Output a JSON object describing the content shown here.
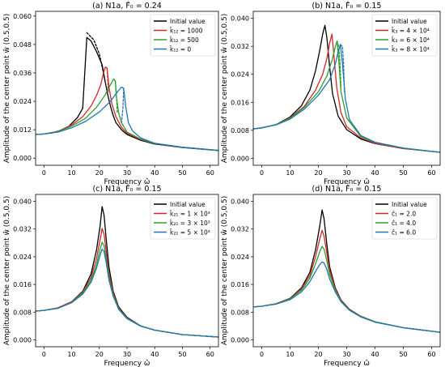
{
  "chart_data": [
    {
      "type": "line",
      "title": "(a) N1a, F̂₀ = 0.24",
      "xlabel": "Frequency ω̂",
      "ylabel": "Amplitude of the center point ŵ (0.5,0.5)",
      "xlim": [
        -3,
        63
      ],
      "ylim": [
        -0.003,
        0.062
      ],
      "xticks": [
        0,
        10,
        20,
        30,
        40,
        50,
        60
      ],
      "yticks": [
        0.0,
        0.012,
        0.024,
        0.036,
        0.048,
        0.06
      ],
      "ytick_labels": [
        "0.000",
        "0.012",
        "0.024",
        "0.036",
        "0.048",
        "0.060"
      ],
      "grid": false,
      "legend": "upper right",
      "series": [
        {
          "name": "Initial value",
          "color": "#000000",
          "x": [
            -3,
            0,
            3,
            6,
            9,
            12,
            14,
            15.5,
            17,
            19,
            21,
            22,
            23,
            24,
            25,
            26,
            28,
            30,
            35,
            40,
            50,
            63
          ],
          "y": [
            0.01,
            0.0102,
            0.0107,
            0.0117,
            0.0135,
            0.017,
            0.021,
            0.051,
            0.0495,
            0.045,
            0.0395,
            0.033,
            0.027,
            0.022,
            0.018,
            0.015,
            0.012,
            0.01,
            0.0075,
            0.006,
            0.0045,
            0.0032
          ],
          "dashed_x": [
            15.5,
            18,
            20,
            21.3,
            22
          ],
          "dashed_y": [
            0.053,
            0.05,
            0.044,
            0.037,
            0.033
          ]
        },
        {
          "name": "k̂₁₂ = 1000",
          "color": "#d62728",
          "x": [
            -3,
            0,
            5,
            10,
            14,
            17,
            19,
            20.5,
            21.5,
            22.2,
            22.8,
            23.5,
            24.5,
            26,
            28,
            30,
            35,
            40,
            50,
            63
          ],
          "y": [
            0.01,
            0.0102,
            0.0113,
            0.014,
            0.0175,
            0.022,
            0.0265,
            0.031,
            0.036,
            0.0385,
            0.038,
            0.03,
            0.023,
            0.0175,
            0.013,
            0.0105,
            0.0078,
            0.0062,
            0.0046,
            0.0033
          ],
          "dashed_x": [
            22.8,
            23.1,
            23.2
          ],
          "dashed_y": [
            0.038,
            0.032,
            0.028
          ]
        },
        {
          "name": "k̂₁₂ = 500",
          "color": "#2ca02c",
          "x": [
            -3,
            0,
            5,
            10,
            15,
            19,
            22,
            24,
            25.2,
            25.8,
            26.2,
            27,
            28,
            30,
            35,
            40,
            50,
            63
          ],
          "y": [
            0.01,
            0.0102,
            0.0112,
            0.0135,
            0.0168,
            0.0215,
            0.0265,
            0.031,
            0.0335,
            0.0325,
            0.0255,
            0.019,
            0.015,
            0.011,
            0.008,
            0.0062,
            0.0046,
            0.0033
          ],
          "dashed_x": [
            25.8,
            26.2,
            26.5
          ],
          "dashed_y": [
            0.0325,
            0.026,
            0.019
          ]
        },
        {
          "name": "k̂₁₂ = 0",
          "color": "#1f77b4",
          "x": [
            -3,
            0,
            5,
            10,
            15,
            20,
            24,
            26.5,
            28,
            28.8,
            29.5,
            30.5,
            32,
            35,
            40,
            50,
            63
          ],
          "y": [
            0.01,
            0.0102,
            0.011,
            0.0128,
            0.0155,
            0.0195,
            0.024,
            0.028,
            0.03,
            0.0295,
            0.022,
            0.015,
            0.0115,
            0.0085,
            0.0063,
            0.0046,
            0.0033
          ],
          "dashed_x": [
            28.8,
            28.5,
            28.0
          ],
          "dashed_y": [
            0.0295,
            0.021,
            0.015
          ]
        }
      ]
    },
    {
      "type": "line",
      "title": "(b) N1a, F̂₀ = 0.15",
      "xlabel": "Frequency ω̂",
      "ylabel": "Amplitude of the center point ŵ (0.5,0.5)",
      "xlim": [
        -3,
        63
      ],
      "ylim": [
        -0.002,
        0.042
      ],
      "xticks": [
        0,
        10,
        20,
        30,
        40,
        50,
        60
      ],
      "yticks": [
        0.0,
        0.008,
        0.016,
        0.024,
        0.032,
        0.04
      ],
      "ytick_labels": [
        "0.000",
        "0.008",
        "0.016",
        "0.024",
        "0.032",
        "0.040"
      ],
      "grid": false,
      "legend": "upper right",
      "series": [
        {
          "name": "Initial value",
          "color": "#000000",
          "x": [
            -3,
            0,
            5,
            10,
            14,
            17,
            19,
            20.5,
            21.5,
            22.3,
            23,
            24,
            25,
            27,
            30,
            35,
            40,
            50,
            63
          ],
          "y": [
            0.0084,
            0.0087,
            0.0096,
            0.0118,
            0.015,
            0.0195,
            0.025,
            0.031,
            0.0355,
            0.038,
            0.0345,
            0.026,
            0.0185,
            0.012,
            0.0082,
            0.0055,
            0.0042,
            0.0028,
            0.0017
          ],
          "dashed_x": [],
          "dashed_y": []
        },
        {
          "name": "k̂₃ = 4 × 10⁴",
          "color": "#d62728",
          "x": [
            -3,
            0,
            5,
            10,
            15,
            19,
            21.5,
            23,
            24,
            24.8,
            25.3,
            26.5,
            28,
            30,
            35,
            40,
            50,
            63
          ],
          "y": [
            0.0084,
            0.0087,
            0.0096,
            0.0116,
            0.0148,
            0.0195,
            0.024,
            0.0285,
            0.033,
            0.0355,
            0.031,
            0.02,
            0.013,
            0.009,
            0.0058,
            0.0043,
            0.0028,
            0.0017
          ],
          "dashed_x": [],
          "dashed_y": []
        },
        {
          "name": "k̂₃ = 6 × 10⁴",
          "color": "#2ca02c",
          "x": [
            -3,
            0,
            5,
            10,
            15,
            20,
            23,
            25,
            26,
            26.6,
            27.2,
            28,
            30,
            35,
            40,
            50,
            63
          ],
          "y": [
            0.0084,
            0.0087,
            0.0096,
            0.0114,
            0.0145,
            0.019,
            0.0235,
            0.0285,
            0.032,
            0.0335,
            0.028,
            0.019,
            0.0115,
            0.0062,
            0.0045,
            0.0029,
            0.0017
          ],
          "dashed_x": [
            26.6,
            27.2,
            27.6,
            28.0
          ],
          "dashed_y": [
            0.0335,
            0.032,
            0.028,
            0.02
          ]
        },
        {
          "name": "k̂₃ = 8 × 10⁴",
          "color": "#1f77b4",
          "x": [
            -3,
            0,
            5,
            10,
            15,
            20,
            24,
            26,
            27,
            27.8,
            28.5,
            29.5,
            31,
            35,
            40,
            50,
            63
          ],
          "y": [
            0.0084,
            0.0087,
            0.0095,
            0.0112,
            0.014,
            0.018,
            0.0225,
            0.027,
            0.0305,
            0.0325,
            0.027,
            0.017,
            0.011,
            0.0065,
            0.0046,
            0.0029,
            0.0017
          ],
          "dashed_x": [
            27.8,
            28.5,
            28.9,
            29.2
          ],
          "dashed_y": [
            0.0325,
            0.032,
            0.027,
            0.019
          ]
        }
      ]
    },
    {
      "type": "line",
      "title": "(c) N1a, F̂₀ = 0.15",
      "xlabel": "Frequency ω̂",
      "ylabel": "Amplitude of the center point ŵ (0.5,0.5)",
      "xlim": [
        -3,
        63
      ],
      "ylim": [
        -0.002,
        0.042
      ],
      "xticks": [
        0,
        10,
        20,
        30,
        40,
        50,
        60
      ],
      "yticks": [
        0.0,
        0.008,
        0.016,
        0.024,
        0.032,
        0.04
      ],
      "ytick_labels": [
        "0.000",
        "0.008",
        "0.016",
        "0.024",
        "0.032",
        "0.040"
      ],
      "grid": false,
      "legend": "upper right",
      "series": [
        {
          "name": "Initial value",
          "color": "#000000",
          "x": [
            -3,
            0,
            5,
            10,
            14,
            17,
            19,
            20.3,
            21,
            21.7,
            22.5,
            23.5,
            25,
            27,
            30,
            35,
            40,
            50,
            63
          ],
          "y": [
            0.0083,
            0.0085,
            0.0092,
            0.011,
            0.014,
            0.019,
            0.026,
            0.033,
            0.0385,
            0.036,
            0.029,
            0.021,
            0.014,
            0.0095,
            0.0065,
            0.004,
            0.0028,
            0.0015,
            0.0008
          ],
          "dashed_x": [],
          "dashed_y": []
        },
        {
          "name": "k̂₂₁ = 1 × 10³",
          "color": "#d62728",
          "x": [
            -3,
            0,
            5,
            10,
            14,
            17,
            19,
            20.3,
            21,
            21.7,
            22.5,
            23.5,
            25,
            27,
            30,
            35,
            40,
            50,
            63
          ],
          "y": [
            0.0083,
            0.0085,
            0.0092,
            0.011,
            0.0138,
            0.018,
            0.0235,
            0.029,
            0.0322,
            0.0305,
            0.0255,
            0.019,
            0.0135,
            0.0092,
            0.0063,
            0.004,
            0.0028,
            0.0015,
            0.0008
          ],
          "dashed_x": [],
          "dashed_y": []
        },
        {
          "name": "k̂₂₁ = 3 × 10³",
          "color": "#2ca02c",
          "x": [
            -3,
            0,
            5,
            10,
            14,
            17,
            19,
            20.3,
            21,
            21.7,
            22.5,
            23.5,
            25,
            27,
            30,
            35,
            40,
            50,
            63
          ],
          "y": [
            0.0083,
            0.0085,
            0.0091,
            0.0108,
            0.0135,
            0.0172,
            0.0218,
            0.0262,
            0.0282,
            0.0272,
            0.0235,
            0.018,
            0.013,
            0.009,
            0.0062,
            0.004,
            0.0028,
            0.0015,
            0.0008
          ],
          "dashed_x": [],
          "dashed_y": []
        },
        {
          "name": "k̂₂₁ = 5 × 10³",
          "color": "#1f77b4",
          "x": [
            -3,
            0,
            5,
            10,
            14,
            17,
            19,
            20.3,
            21,
            21.7,
            22.5,
            23.5,
            25,
            27,
            30,
            35,
            40,
            50,
            63
          ],
          "y": [
            0.0083,
            0.0085,
            0.0091,
            0.0107,
            0.0132,
            0.0166,
            0.0207,
            0.0245,
            0.0262,
            0.0255,
            0.0222,
            0.0172,
            0.0126,
            0.0088,
            0.0061,
            0.0039,
            0.0028,
            0.0015,
            0.0008
          ],
          "dashed_x": [],
          "dashed_y": []
        }
      ]
    },
    {
      "type": "line",
      "title": "(d) N1a, F̂₀ = 0.15",
      "xlabel": "Frequency ω̂",
      "ylabel": "Amplitude of the center point ŵ (0.5,0.5)",
      "xlim": [
        -3,
        63
      ],
      "ylim": [
        -0.002,
        0.042
      ],
      "xticks": [
        0,
        10,
        20,
        30,
        40,
        50,
        60
      ],
      "yticks": [
        0.0,
        0.008,
        0.016,
        0.024,
        0.032,
        0.04
      ],
      "ytick_labels": [
        "0.000",
        "0.008",
        "0.016",
        "0.024",
        "0.032",
        "0.040"
      ],
      "grid": false,
      "legend": "upper right",
      "series": [
        {
          "name": "Initial value",
          "color": "#000000",
          "x": [
            -3,
            0,
            5,
            10,
            14,
            17,
            19,
            20.5,
            21.3,
            22,
            23,
            24,
            26,
            28,
            31,
            35,
            40,
            50,
            63
          ],
          "y": [
            0.0095,
            0.0097,
            0.0104,
            0.012,
            0.015,
            0.0195,
            0.026,
            0.033,
            0.0375,
            0.035,
            0.0275,
            0.021,
            0.015,
            0.0115,
            0.0088,
            0.0068,
            0.0052,
            0.0035,
            0.0022
          ],
          "dashed_x": [],
          "dashed_y": []
        },
        {
          "name": "ĉ₁ = 2.0",
          "color": "#d62728",
          "x": [
            -3,
            0,
            5,
            10,
            14,
            17,
            19,
            20.5,
            21.3,
            22,
            23,
            24,
            26,
            28,
            31,
            35,
            40,
            50,
            63
          ],
          "y": [
            0.0095,
            0.0097,
            0.0104,
            0.0119,
            0.0147,
            0.0186,
            0.024,
            0.0292,
            0.0316,
            0.03,
            0.025,
            0.02,
            0.0147,
            0.0114,
            0.0087,
            0.0068,
            0.0052,
            0.0035,
            0.0022
          ],
          "dashed_x": [],
          "dashed_y": []
        },
        {
          "name": "ĉ₁ = 4.0",
          "color": "#2ca02c",
          "x": [
            -3,
            0,
            5,
            10,
            14,
            17,
            19,
            20.5,
            21.3,
            22,
            23,
            24,
            26,
            28,
            31,
            35,
            40,
            50,
            63
          ],
          "y": [
            0.0095,
            0.0097,
            0.0103,
            0.0118,
            0.0143,
            0.0178,
            0.022,
            0.0255,
            0.027,
            0.0262,
            0.0228,
            0.0188,
            0.0143,
            0.0112,
            0.0086,
            0.0067,
            0.0052,
            0.0035,
            0.0022
          ],
          "dashed_x": [],
          "dashed_y": []
        },
        {
          "name": "ĉ₁ = 6.0",
          "color": "#1f77b4",
          "x": [
            -3,
            0,
            5,
            10,
            14,
            17,
            19,
            20.5,
            21.3,
            22,
            23,
            24,
            26,
            28,
            31,
            35,
            40,
            50,
            63
          ],
          "y": [
            0.0095,
            0.0097,
            0.0103,
            0.0116,
            0.0138,
            0.0168,
            0.0198,
            0.0218,
            0.0225,
            0.0222,
            0.0203,
            0.0175,
            0.0138,
            0.011,
            0.0085,
            0.0066,
            0.0051,
            0.0035,
            0.0022
          ],
          "dashed_x": [],
          "dashed_y": []
        }
      ]
    }
  ]
}
